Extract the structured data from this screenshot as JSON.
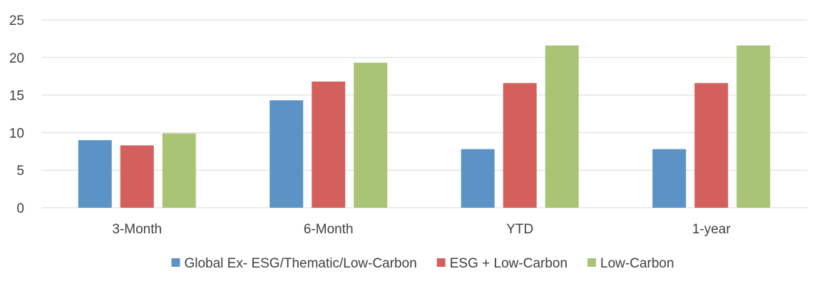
{
  "chart_data": {
    "type": "bar",
    "title": "",
    "xlabel": "",
    "ylabel": "",
    "categories": [
      "3-Month",
      "6-Month",
      "YTD",
      "1-year"
    ],
    "series": [
      {
        "name": "Global Ex- ESG/Thematic/Low-Carbon",
        "color": "#5b93c7",
        "values": [
          9.0,
          14.3,
          7.8,
          7.8
        ]
      },
      {
        "name": "ESG + Low-Carbon",
        "color": "#d3605d",
        "values": [
          8.3,
          16.8,
          16.6,
          16.6
        ]
      },
      {
        "name": "Low-Carbon",
        "color": "#a8c474",
        "values": [
          9.9,
          19.3,
          21.6,
          21.6
        ]
      }
    ],
    "ylim": [
      0,
      25
    ],
    "yticks": [
      0,
      5,
      10,
      15,
      20,
      25
    ],
    "grid": true,
    "legend_position": "bottom"
  }
}
